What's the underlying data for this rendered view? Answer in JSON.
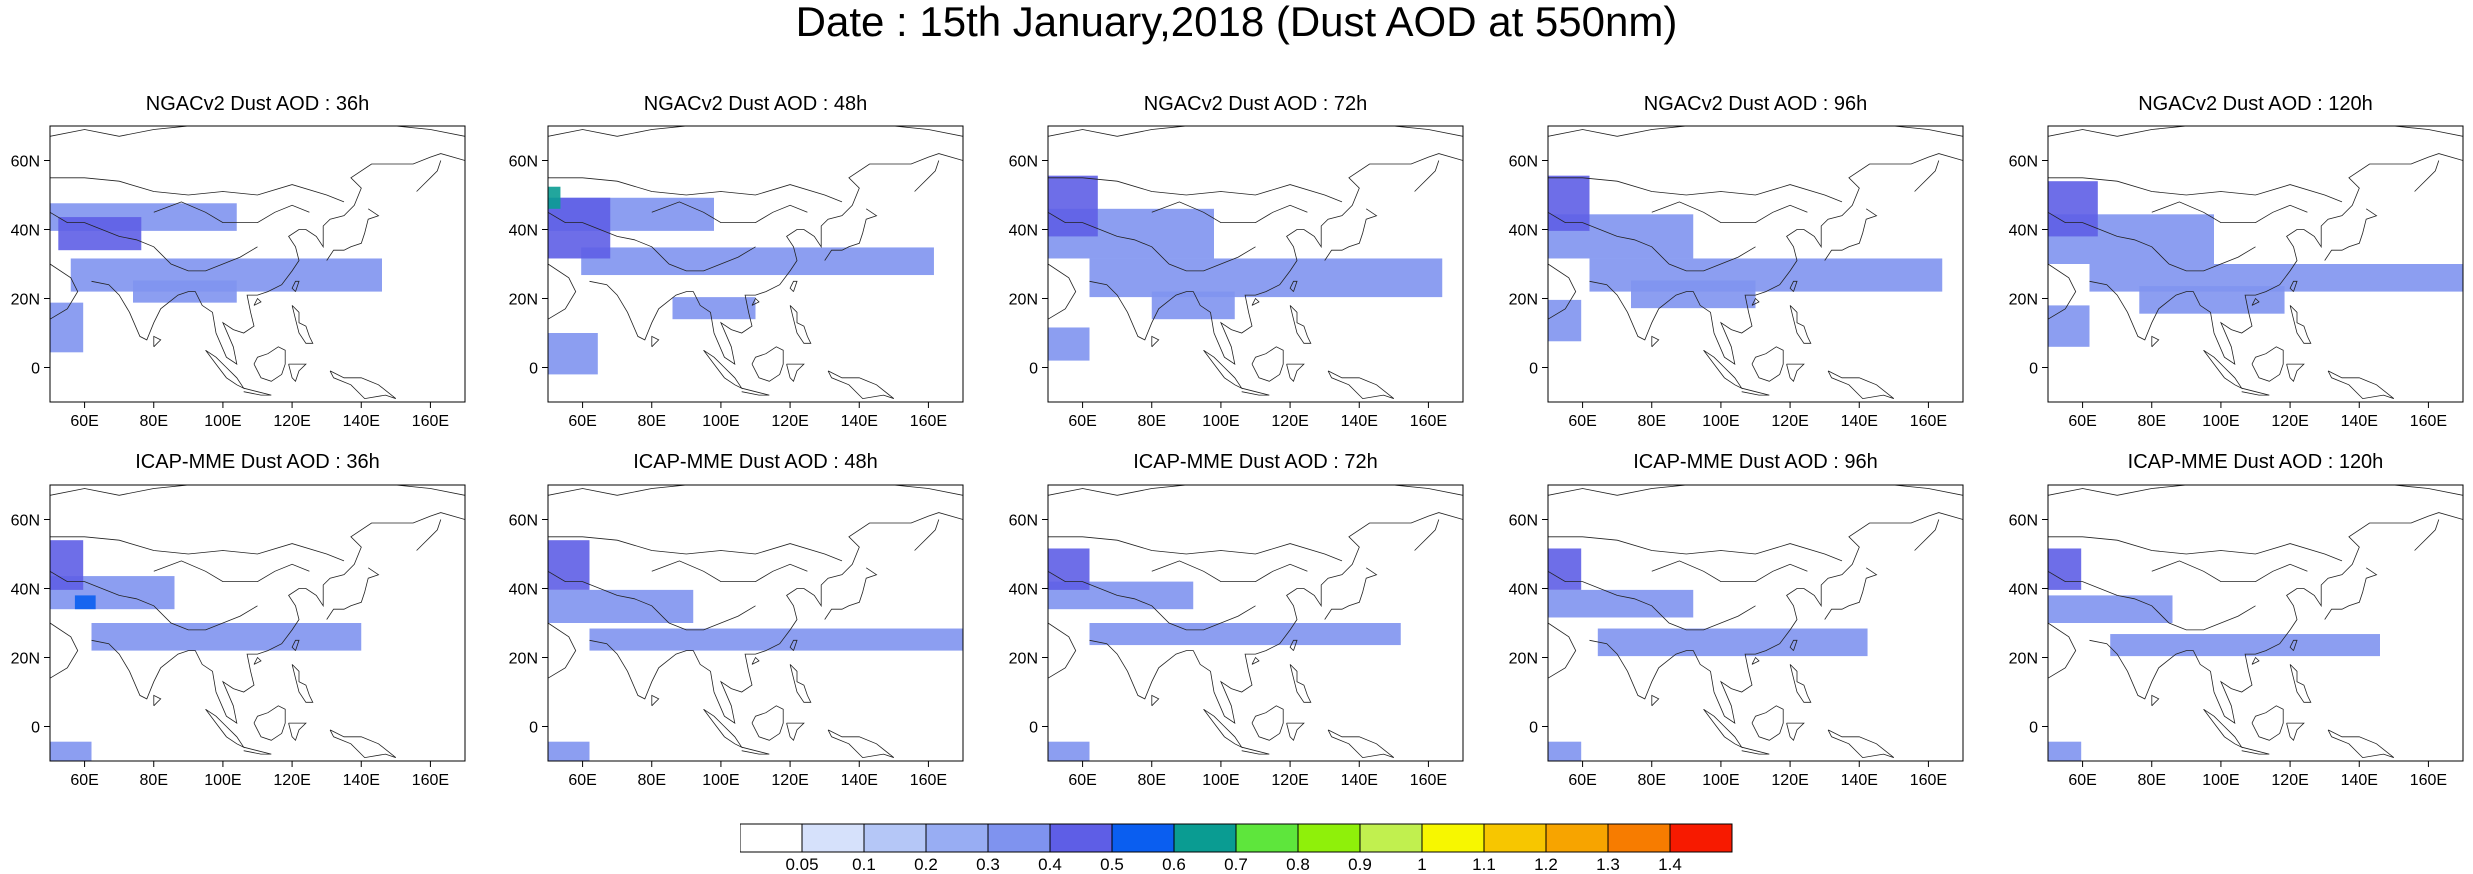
{
  "title": "Date : 15th January,2018 (Dust AOD at 550nm)",
  "panels": [
    {
      "title": "NGACv2 Dust AOD : 36h",
      "row": 0,
      "col": 0,
      "patches": [
        [
          0.0,
          0.62,
          0.45,
          0.1,
          0.3
        ],
        [
          0.05,
          0.4,
          0.75,
          0.12,
          0.3
        ],
        [
          0.02,
          0.55,
          0.2,
          0.12,
          0.4
        ],
        [
          0.0,
          0.18,
          0.08,
          0.18,
          0.3
        ],
        [
          0.2,
          0.36,
          0.25,
          0.08,
          0.3
        ]
      ]
    },
    {
      "title": "NGACv2 Dust AOD : 48h",
      "row": 0,
      "col": 1,
      "patches": [
        [
          0.0,
          0.62,
          0.4,
          0.12,
          0.3
        ],
        [
          0.08,
          0.46,
          0.85,
          0.1,
          0.3
        ],
        [
          0.0,
          0.52,
          0.15,
          0.22,
          0.4
        ],
        [
          0.0,
          0.7,
          0.03,
          0.08,
          0.6
        ],
        [
          0.0,
          0.1,
          0.12,
          0.15,
          0.3
        ],
        [
          0.3,
          0.3,
          0.2,
          0.08,
          0.3
        ]
      ]
    },
    {
      "title": "NGACv2 Dust AOD : 72h",
      "row": 0,
      "col": 2,
      "patches": [
        [
          0.0,
          0.52,
          0.4,
          0.18,
          0.3
        ],
        [
          0.1,
          0.38,
          0.85,
          0.14,
          0.3
        ],
        [
          0.0,
          0.6,
          0.12,
          0.22,
          0.4
        ],
        [
          0.0,
          0.15,
          0.1,
          0.12,
          0.3
        ],
        [
          0.25,
          0.3,
          0.2,
          0.1,
          0.3
        ]
      ]
    },
    {
      "title": "NGACv2 Dust AOD : 96h",
      "row": 0,
      "col": 3,
      "patches": [
        [
          0.0,
          0.52,
          0.35,
          0.16,
          0.3
        ],
        [
          0.1,
          0.4,
          0.85,
          0.12,
          0.3
        ],
        [
          0.0,
          0.62,
          0.1,
          0.2,
          0.4
        ],
        [
          0.0,
          0.22,
          0.08,
          0.15,
          0.3
        ],
        [
          0.2,
          0.34,
          0.3,
          0.1,
          0.3
        ]
      ]
    },
    {
      "title": "NGACv2 Dust AOD : 120h",
      "row": 0,
      "col": 4,
      "patches": [
        [
          0.0,
          0.5,
          0.4,
          0.18,
          0.3
        ],
        [
          0.1,
          0.4,
          0.9,
          0.1,
          0.3
        ],
        [
          0.0,
          0.6,
          0.12,
          0.2,
          0.4
        ],
        [
          0.0,
          0.2,
          0.1,
          0.15,
          0.3
        ],
        [
          0.22,
          0.32,
          0.35,
          0.1,
          0.3
        ]
      ]
    },
    {
      "title": "ICAP-MME Dust AOD : 36h",
      "row": 1,
      "col": 0,
      "patches": [
        [
          0.0,
          0.55,
          0.3,
          0.12,
          0.3
        ],
        [
          0.1,
          0.4,
          0.65,
          0.1,
          0.3
        ],
        [
          0.0,
          0.62,
          0.08,
          0.18,
          0.4
        ],
        [
          0.06,
          0.55,
          0.05,
          0.05,
          0.5
        ],
        [
          0.0,
          0.0,
          0.1,
          0.07,
          0.3
        ]
      ]
    },
    {
      "title": "ICAP-MME Dust AOD : 48h",
      "row": 1,
      "col": 1,
      "patches": [
        [
          0.0,
          0.5,
          0.35,
          0.12,
          0.3
        ],
        [
          0.1,
          0.4,
          0.95,
          0.08,
          0.3
        ],
        [
          0.0,
          0.62,
          0.1,
          0.18,
          0.4
        ],
        [
          0.0,
          0.0,
          0.1,
          0.07,
          0.3
        ]
      ]
    },
    {
      "title": "ICAP-MME Dust AOD : 72h",
      "row": 1,
      "col": 2,
      "patches": [
        [
          0.0,
          0.55,
          0.35,
          0.1,
          0.3
        ],
        [
          0.1,
          0.42,
          0.75,
          0.08,
          0.3
        ],
        [
          0.0,
          0.62,
          0.1,
          0.15,
          0.4
        ],
        [
          0.0,
          0.0,
          0.1,
          0.07,
          0.3
        ]
      ]
    },
    {
      "title": "ICAP-MME Dust AOD : 96h",
      "row": 1,
      "col": 3,
      "patches": [
        [
          0.0,
          0.52,
          0.35,
          0.1,
          0.3
        ],
        [
          0.12,
          0.38,
          0.65,
          0.1,
          0.3
        ],
        [
          0.0,
          0.62,
          0.08,
          0.15,
          0.4
        ],
        [
          0.0,
          0.0,
          0.08,
          0.07,
          0.3
        ]
      ]
    },
    {
      "title": "ICAP-MME Dust AOD : 120h",
      "row": 1,
      "col": 4,
      "patches": [
        [
          0.0,
          0.5,
          0.3,
          0.1,
          0.3
        ],
        [
          0.15,
          0.38,
          0.65,
          0.08,
          0.3
        ],
        [
          0.0,
          0.62,
          0.08,
          0.15,
          0.4
        ],
        [
          0.0,
          0.0,
          0.08,
          0.07,
          0.3
        ]
      ]
    }
  ],
  "lon_ticks": [
    "60E",
    "80E",
    "100E",
    "120E",
    "140E",
    "160E"
  ],
  "lat_ticks": [
    "60N",
    "40N",
    "20N",
    "0"
  ],
  "colorbar": {
    "labels": [
      "0.05",
      "0.1",
      "0.2",
      "0.3",
      "0.4",
      "0.5",
      "0.6",
      "0.7",
      "0.8",
      "0.9",
      "1",
      "1.1",
      "1.2",
      "1.3",
      "1.4"
    ],
    "colors": [
      "#ffffff",
      "#d6e1fb",
      "#b5c7f7",
      "#98adf3",
      "#7f93ef",
      "#5e5ee6",
      "#0a5ef0",
      "#0a9c92",
      "#5ee63c",
      "#8ff00a",
      "#c1f04f",
      "#f7f700",
      "#f7c600",
      "#f7a400",
      "#f77c00",
      "#f71a00"
    ]
  }
}
